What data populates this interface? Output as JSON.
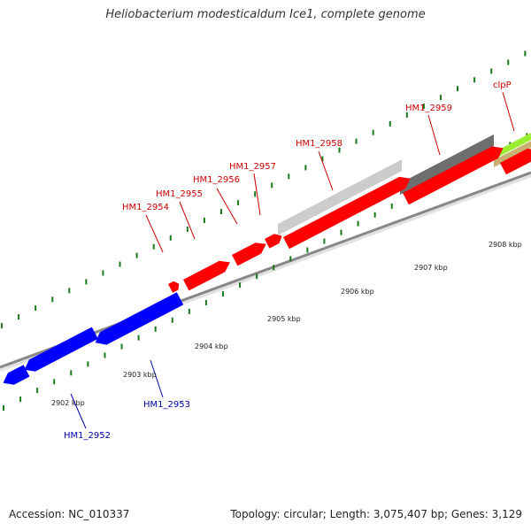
{
  "title": "Heliobacterium modesticaldum Ice1, complete genome",
  "footer": {
    "accession": "Accession: NC_010337",
    "stats": "Topology: circular; Length: 3,075,407 bp; Genes: 3,129"
  },
  "colors": {
    "forward_gene": "#ff0000",
    "reverse_gene": "#0000ff",
    "backbone": "#888888",
    "tick": "#1a7a1a",
    "label_forward": "#cc0000",
    "label_reverse": "#0000aa",
    "feature_light_grey": "#cccccc",
    "feature_dark_grey": "#6e6e6e",
    "feature_green": "#99ee33",
    "feature_tan": "#c8b070"
  },
  "kbp_labels": [
    "2902 kbp",
    "2903 kbp",
    "2904 kbp",
    "2905 kbp",
    "2906 kbp",
    "2907 kbp",
    "2908 kbp"
  ],
  "gene_labels": [
    {
      "id": "HM1_2952",
      "strand": "reverse"
    },
    {
      "id": "HM1_2953",
      "strand": "reverse"
    },
    {
      "id": "HM1_2954",
      "strand": "forward"
    },
    {
      "id": "HM1_2955",
      "strand": "forward"
    },
    {
      "id": "HM1_2956",
      "strand": "forward"
    },
    {
      "id": "HM1_2957",
      "strand": "forward"
    },
    {
      "id": "HM1_2958",
      "strand": "forward"
    },
    {
      "id": "HM1_2959",
      "strand": "forward"
    },
    {
      "id": "clpP",
      "strand": "forward"
    }
  ]
}
